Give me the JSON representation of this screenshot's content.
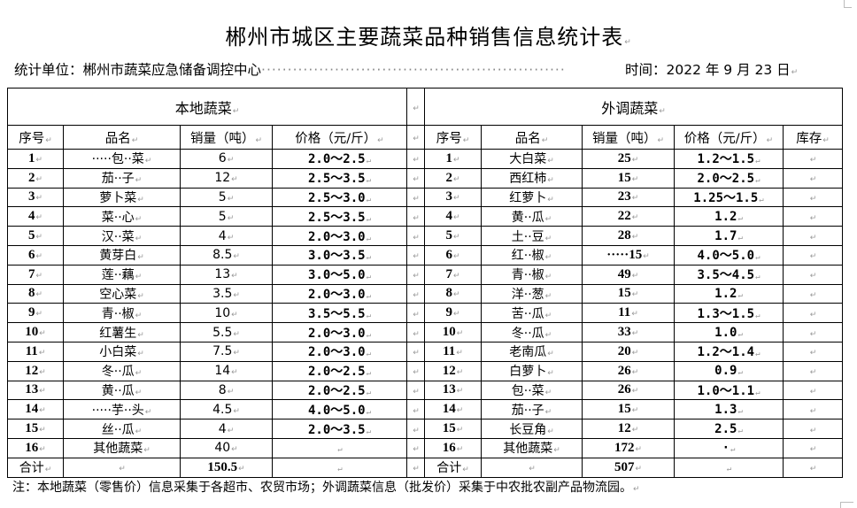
{
  "title": "郴州市城区主要蔬菜品种销售信息统计表",
  "meta": {
    "unit_label": "统计单位：郴州市蔬菜应急储备调控中心",
    "dots": "··························································",
    "date_label": "时间：2022 年 9 月 23 日"
  },
  "local": {
    "section_title": "本地蔬菜",
    "headers": [
      "序号",
      "品名",
      "销量（吨）",
      "价格（元/斤）"
    ],
    "rows": [
      [
        "1",
        "·····包··菜",
        "6",
        "2.0～2.5"
      ],
      [
        "2",
        "茄··子",
        "12",
        "2.5～3.5"
      ],
      [
        "3",
        "萝卜菜",
        "5",
        "2.5～3.0"
      ],
      [
        "4",
        "菜··心",
        "5",
        "2.5～3.5"
      ],
      [
        "5",
        "汉··菜",
        "4",
        "2.0～3.0"
      ],
      [
        "6",
        "黄芽白",
        "8.5",
        "3.0～3.5"
      ],
      [
        "7",
        "莲··藕",
        "13",
        "3.0～5.0"
      ],
      [
        "8",
        "空心菜",
        "3.5",
        "2.0～3.0"
      ],
      [
        "9",
        "青··椒",
        "10",
        "3.5～5.5"
      ],
      [
        "10",
        "红薯生",
        "5.5",
        "2.0～3.0"
      ],
      [
        "11",
        "小白菜",
        "7.5",
        "2.0～3.0"
      ],
      [
        "12",
        "冬··瓜",
        "14",
        "2.0～2.5"
      ],
      [
        "13",
        "黄··瓜",
        "8",
        "2.0～2.5"
      ],
      [
        "14",
        "·····芋··头",
        "4.5",
        "4.0～5.0"
      ],
      [
        "15",
        "丝··瓜",
        "4",
        "2.0～3.5"
      ],
      [
        "16",
        "其他蔬菜",
        "40",
        ""
      ]
    ],
    "total": [
      "合计",
      "",
      "150.5",
      ""
    ]
  },
  "external": {
    "section_title": "外调蔬菜",
    "headers": [
      "序号",
      "品名",
      "销量（吨）",
      "价格（元/斤）",
      "库存"
    ],
    "rows": [
      [
        "1",
        "大白菜",
        "25",
        "1.2～1.5",
        ""
      ],
      [
        "2",
        "西红柿",
        "15",
        "2.0～2.5",
        ""
      ],
      [
        "3",
        "红萝卜",
        "23",
        "1.25～1.5",
        ""
      ],
      [
        "4",
        "黄··瓜",
        "22",
        "1.2",
        ""
      ],
      [
        "5",
        "土··豆",
        "28",
        "1.7",
        ""
      ],
      [
        "6",
        "红··椒",
        "·····15",
        "4.0～5.0",
        ""
      ],
      [
        "7",
        "青··椒",
        "49",
        "3.5～4.5",
        ""
      ],
      [
        "8",
        "洋··葱",
        "15",
        "1.2",
        ""
      ],
      [
        "9",
        "苦··瓜",
        "11",
        "1.3～1.5",
        ""
      ],
      [
        "10",
        "冬··瓜",
        "33",
        "1.0",
        ""
      ],
      [
        "11",
        "老南瓜",
        "20",
        "1.2～1.4",
        ""
      ],
      [
        "12",
        "白萝卜",
        "26",
        "0.9",
        ""
      ],
      [
        "13",
        "包··菜",
        "26",
        "1.0～1.1",
        ""
      ],
      [
        "14",
        "茄··子",
        "15",
        "1.3",
        ""
      ],
      [
        "15",
        "长豆角",
        "12",
        "2.5",
        ""
      ],
      [
        "16",
        "其他蔬菜",
        "172",
        "·",
        ""
      ]
    ],
    "total": [
      "合计",
      "",
      "507",
      "",
      ""
    ]
  },
  "note": "注：本地蔬菜（零售价）信息采集于各超市、农贸市场；外调蔬菜信息（批发价）采集于中农批农副产品物流园。"
}
